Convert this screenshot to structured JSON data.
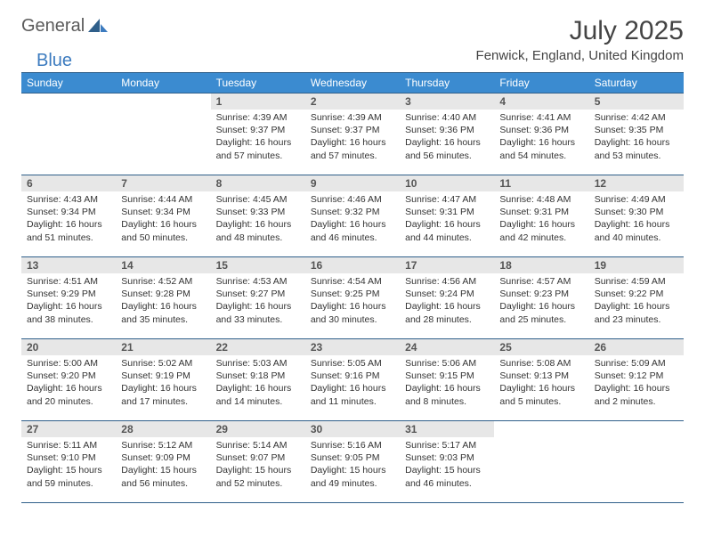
{
  "brand": {
    "part1": "General",
    "part2": "Blue"
  },
  "title": "July 2025",
  "location": "Fenwick, England, United Kingdom",
  "colors": {
    "header_bg": "#3b8bd0",
    "header_text": "#ffffff",
    "rule": "#2f5f8a",
    "daynum_bg": "#e7e7e7",
    "brand_gray": "#5a5a5a",
    "brand_blue": "#3c7bbf"
  },
  "weekdays": [
    "Sunday",
    "Monday",
    "Tuesday",
    "Wednesday",
    "Thursday",
    "Friday",
    "Saturday"
  ],
  "weeks": [
    [
      {
        "n": "",
        "sunrise": "",
        "sunset": "",
        "daylight": ""
      },
      {
        "n": "",
        "sunrise": "",
        "sunset": "",
        "daylight": ""
      },
      {
        "n": "1",
        "sunrise": "Sunrise: 4:39 AM",
        "sunset": "Sunset: 9:37 PM",
        "daylight": "Daylight: 16 hours and 57 minutes."
      },
      {
        "n": "2",
        "sunrise": "Sunrise: 4:39 AM",
        "sunset": "Sunset: 9:37 PM",
        "daylight": "Daylight: 16 hours and 57 minutes."
      },
      {
        "n": "3",
        "sunrise": "Sunrise: 4:40 AM",
        "sunset": "Sunset: 9:36 PM",
        "daylight": "Daylight: 16 hours and 56 minutes."
      },
      {
        "n": "4",
        "sunrise": "Sunrise: 4:41 AM",
        "sunset": "Sunset: 9:36 PM",
        "daylight": "Daylight: 16 hours and 54 minutes."
      },
      {
        "n": "5",
        "sunrise": "Sunrise: 4:42 AM",
        "sunset": "Sunset: 9:35 PM",
        "daylight": "Daylight: 16 hours and 53 minutes."
      }
    ],
    [
      {
        "n": "6",
        "sunrise": "Sunrise: 4:43 AM",
        "sunset": "Sunset: 9:34 PM",
        "daylight": "Daylight: 16 hours and 51 minutes."
      },
      {
        "n": "7",
        "sunrise": "Sunrise: 4:44 AM",
        "sunset": "Sunset: 9:34 PM",
        "daylight": "Daylight: 16 hours and 50 minutes."
      },
      {
        "n": "8",
        "sunrise": "Sunrise: 4:45 AM",
        "sunset": "Sunset: 9:33 PM",
        "daylight": "Daylight: 16 hours and 48 minutes."
      },
      {
        "n": "9",
        "sunrise": "Sunrise: 4:46 AM",
        "sunset": "Sunset: 9:32 PM",
        "daylight": "Daylight: 16 hours and 46 minutes."
      },
      {
        "n": "10",
        "sunrise": "Sunrise: 4:47 AM",
        "sunset": "Sunset: 9:31 PM",
        "daylight": "Daylight: 16 hours and 44 minutes."
      },
      {
        "n": "11",
        "sunrise": "Sunrise: 4:48 AM",
        "sunset": "Sunset: 9:31 PM",
        "daylight": "Daylight: 16 hours and 42 minutes."
      },
      {
        "n": "12",
        "sunrise": "Sunrise: 4:49 AM",
        "sunset": "Sunset: 9:30 PM",
        "daylight": "Daylight: 16 hours and 40 minutes."
      }
    ],
    [
      {
        "n": "13",
        "sunrise": "Sunrise: 4:51 AM",
        "sunset": "Sunset: 9:29 PM",
        "daylight": "Daylight: 16 hours and 38 minutes."
      },
      {
        "n": "14",
        "sunrise": "Sunrise: 4:52 AM",
        "sunset": "Sunset: 9:28 PM",
        "daylight": "Daylight: 16 hours and 35 minutes."
      },
      {
        "n": "15",
        "sunrise": "Sunrise: 4:53 AM",
        "sunset": "Sunset: 9:27 PM",
        "daylight": "Daylight: 16 hours and 33 minutes."
      },
      {
        "n": "16",
        "sunrise": "Sunrise: 4:54 AM",
        "sunset": "Sunset: 9:25 PM",
        "daylight": "Daylight: 16 hours and 30 minutes."
      },
      {
        "n": "17",
        "sunrise": "Sunrise: 4:56 AM",
        "sunset": "Sunset: 9:24 PM",
        "daylight": "Daylight: 16 hours and 28 minutes."
      },
      {
        "n": "18",
        "sunrise": "Sunrise: 4:57 AM",
        "sunset": "Sunset: 9:23 PM",
        "daylight": "Daylight: 16 hours and 25 minutes."
      },
      {
        "n": "19",
        "sunrise": "Sunrise: 4:59 AM",
        "sunset": "Sunset: 9:22 PM",
        "daylight": "Daylight: 16 hours and 23 minutes."
      }
    ],
    [
      {
        "n": "20",
        "sunrise": "Sunrise: 5:00 AM",
        "sunset": "Sunset: 9:20 PM",
        "daylight": "Daylight: 16 hours and 20 minutes."
      },
      {
        "n": "21",
        "sunrise": "Sunrise: 5:02 AM",
        "sunset": "Sunset: 9:19 PM",
        "daylight": "Daylight: 16 hours and 17 minutes."
      },
      {
        "n": "22",
        "sunrise": "Sunrise: 5:03 AM",
        "sunset": "Sunset: 9:18 PM",
        "daylight": "Daylight: 16 hours and 14 minutes."
      },
      {
        "n": "23",
        "sunrise": "Sunrise: 5:05 AM",
        "sunset": "Sunset: 9:16 PM",
        "daylight": "Daylight: 16 hours and 11 minutes."
      },
      {
        "n": "24",
        "sunrise": "Sunrise: 5:06 AM",
        "sunset": "Sunset: 9:15 PM",
        "daylight": "Daylight: 16 hours and 8 minutes."
      },
      {
        "n": "25",
        "sunrise": "Sunrise: 5:08 AM",
        "sunset": "Sunset: 9:13 PM",
        "daylight": "Daylight: 16 hours and 5 minutes."
      },
      {
        "n": "26",
        "sunrise": "Sunrise: 5:09 AM",
        "sunset": "Sunset: 9:12 PM",
        "daylight": "Daylight: 16 hours and 2 minutes."
      }
    ],
    [
      {
        "n": "27",
        "sunrise": "Sunrise: 5:11 AM",
        "sunset": "Sunset: 9:10 PM",
        "daylight": "Daylight: 15 hours and 59 minutes."
      },
      {
        "n": "28",
        "sunrise": "Sunrise: 5:12 AM",
        "sunset": "Sunset: 9:09 PM",
        "daylight": "Daylight: 15 hours and 56 minutes."
      },
      {
        "n": "29",
        "sunrise": "Sunrise: 5:14 AM",
        "sunset": "Sunset: 9:07 PM",
        "daylight": "Daylight: 15 hours and 52 minutes."
      },
      {
        "n": "30",
        "sunrise": "Sunrise: 5:16 AM",
        "sunset": "Sunset: 9:05 PM",
        "daylight": "Daylight: 15 hours and 49 minutes."
      },
      {
        "n": "31",
        "sunrise": "Sunrise: 5:17 AM",
        "sunset": "Sunset: 9:03 PM",
        "daylight": "Daylight: 15 hours and 46 minutes."
      },
      {
        "n": "",
        "sunrise": "",
        "sunset": "",
        "daylight": ""
      },
      {
        "n": "",
        "sunrise": "",
        "sunset": "",
        "daylight": ""
      }
    ]
  ]
}
